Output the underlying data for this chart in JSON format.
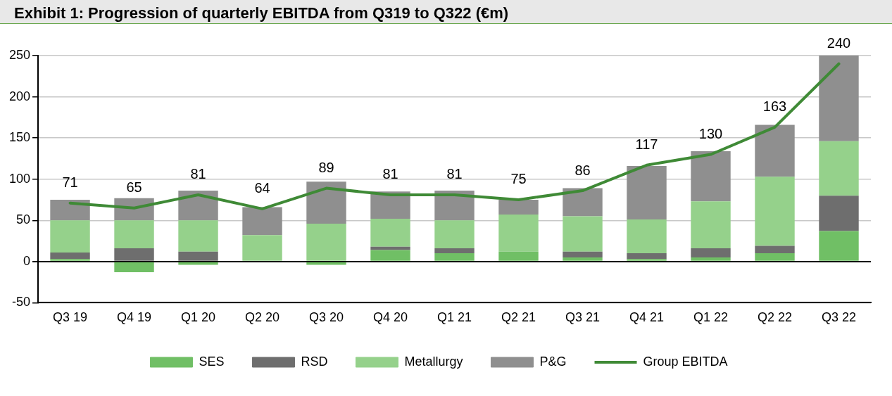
{
  "chart_data": {
    "type": "bar",
    "title": "Exhibit 1: Progression of quarterly EBITDA from Q319 to Q322 (€m)",
    "categories": [
      "Q3 19",
      "Q4 19",
      "Q1 20",
      "Q2 20",
      "Q3 20",
      "Q4 20",
      "Q1 21",
      "Q2 21",
      "Q3 21",
      "Q4 21",
      "Q1 22",
      "Q2 22",
      "Q3 22"
    ],
    "stacked": true,
    "series": [
      {
        "name": "SES",
        "color": "#70bf65",
        "values": [
          3,
          -13,
          -4,
          0,
          -4,
          14,
          10,
          12,
          5,
          3,
          5,
          10,
          37
        ]
      },
      {
        "name": "RSD",
        "color": "#6e6e6e",
        "values": [
          8,
          16,
          12,
          0,
          0,
          4,
          6,
          0,
          7,
          7,
          11,
          9,
          43
        ]
      },
      {
        "name": "Metallurgy",
        "color": "#95d18b",
        "values": [
          39,
          34,
          38,
          32,
          46,
          34,
          34,
          45,
          43,
          41,
          57,
          84,
          66
        ]
      },
      {
        "name": "P&G",
        "color": "#8f8f8f",
        "values": [
          25,
          27,
          36,
          34,
          51,
          33,
          36,
          18,
          34,
          65,
          61,
          63,
          104
        ]
      },
      {
        "name": "Group EBITDA",
        "type": "line",
        "color": "#3f8a36",
        "values": [
          71,
          65,
          81,
          64,
          89,
          81,
          81,
          75,
          86,
          117,
          130,
          163,
          240
        ],
        "value_labels": [
          "71",
          "65",
          "81",
          "64",
          "89",
          "81",
          "81",
          "75",
          "86",
          "117",
          "130",
          "163",
          "240"
        ]
      }
    ],
    "ylim": [
      -50,
      250
    ],
    "yticks": [
      -50,
      0,
      50,
      100,
      150,
      200,
      250
    ],
    "grid": "y",
    "legend": "bottom",
    "marker": "none",
    "line_style": "solid"
  }
}
